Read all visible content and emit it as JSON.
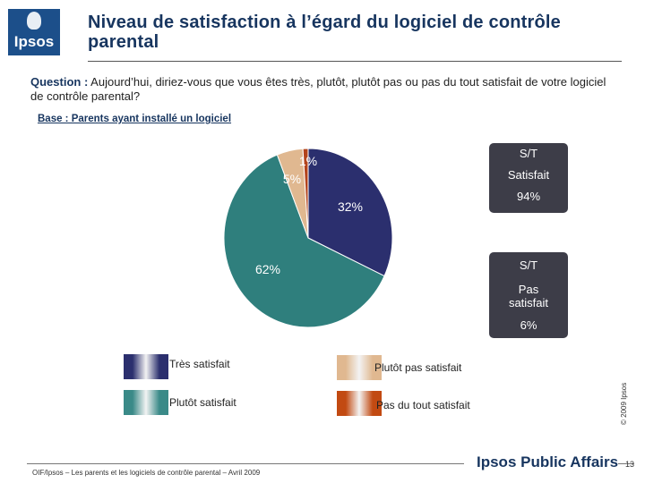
{
  "header": {
    "logo_text": "Ipsos",
    "title_line1": "Niveau de satisfaction à l’égard du logiciel de contrôle",
    "title_line2": "parental"
  },
  "question": {
    "label": "Question :",
    "text": " Aujourd’hui, diriez-vous que vous êtes très, plutôt, plutôt pas ou pas du tout satisfait de votre logiciel de contrôle parental?"
  },
  "base": "Base : Parents ayant installé un logiciel",
  "summary": {
    "satisfied": {
      "line1": "S/T",
      "line2": "Satisfait",
      "value": "94%"
    },
    "not_satisfied": {
      "line1": "S/T",
      "line2": "Pas",
      "line3": "satisfait",
      "value": "6%"
    }
  },
  "chart_data": {
    "type": "pie",
    "series": [
      {
        "name": "Très satisfait",
        "value": 32,
        "label": "32%",
        "color": "#2b2f6e"
      },
      {
        "name": "Plutôt satisfait",
        "value": 62,
        "label": "62%",
        "color": "#2f7f7d"
      },
      {
        "name": "Plutôt pas satisfait",
        "value": 5,
        "label": "5%",
        "color": "#e0b890"
      },
      {
        "name": "Pas du tout satisfait",
        "value": 1,
        "label": "1%",
        "color": "#b3441c"
      }
    ]
  },
  "legend": [
    {
      "label": "Très satisfait",
      "color": "#2b2f6e"
    },
    {
      "label": "Plutôt pas satisfait",
      "color": "#e0b890"
    },
    {
      "label": "Plutôt satisfait",
      "color": "#3a8a88"
    },
    {
      "label": "Pas du tout satisfait",
      "color": "#c24a12"
    }
  ],
  "footer": {
    "copyright": "© 2009 Ipsos",
    "source": "OIF/Ipsos – Les parents et les logiciels de contrôle parental – Avril 2009",
    "brand": "Ipsos Public Affairs",
    "page": "13"
  }
}
